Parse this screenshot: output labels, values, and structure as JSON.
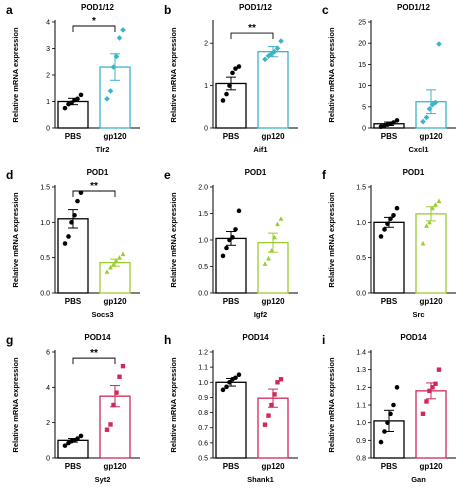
{
  "chart_data": [
    {
      "letter": "a",
      "type": "bar",
      "title": "POD1/12",
      "ylabel": "Relative mRNA expression",
      "gene": "Tlr2",
      "ylim": [
        0,
        4
      ],
      "yticks": [
        0,
        1,
        2,
        3,
        4
      ],
      "tick_decimals": 0,
      "categories": [
        "PBS",
        "gp120"
      ],
      "series": [
        {
          "color": "#000000",
          "mean": 1.0,
          "sem": 0.12,
          "points": [
            0.75,
            0.9,
            0.95,
            1.05,
            1.1,
            1.25
          ]
        },
        {
          "color": "#3cb4c8",
          "mean": 2.3,
          "sem": 0.5,
          "points": [
            1.1,
            1.4,
            2.3,
            2.7,
            3.4,
            3.7
          ]
        }
      ],
      "significance": "*"
    },
    {
      "letter": "b",
      "type": "bar",
      "title": "POD1/12",
      "ylabel": "Relative mRNA expression",
      "gene": "Aif1",
      "ylim": [
        0,
        2.5
      ],
      "yticks": [
        0,
        1,
        2
      ],
      "tick_decimals": 0,
      "categories": [
        "PBS",
        "gp120"
      ],
      "series": [
        {
          "color": "#000000",
          "mean": 1.05,
          "sem": 0.15,
          "points": [
            0.65,
            0.8,
            1.0,
            1.3,
            1.4,
            1.45
          ]
        },
        {
          "color": "#3cb4c8",
          "mean": 1.8,
          "sem": 0.12,
          "points": [
            1.62,
            1.7,
            1.75,
            1.8,
            1.88,
            2.05
          ]
        }
      ],
      "significance": "**"
    },
    {
      "letter": "c",
      "type": "bar",
      "title": "POD1/12",
      "ylabel": "Relative mRNA expression",
      "gene": "Cxcl1",
      "ylim": [
        0,
        25
      ],
      "yticks": [
        0,
        5,
        10,
        15,
        20,
        25
      ],
      "tick_decimals": 0,
      "categories": [
        "PBS",
        "gp120"
      ],
      "series": [
        {
          "color": "#000000",
          "mean": 1.0,
          "sem": 0.4,
          "points": [
            0.3,
            0.6,
            0.8,
            1.0,
            1.3,
            1.8
          ]
        },
        {
          "color": "#3cb4c8",
          "mean": 6.2,
          "sem": 2.8,
          "points": [
            1.5,
            2.5,
            4.5,
            5.5,
            6.0,
            19.8
          ]
        }
      ],
      "significance": ""
    },
    {
      "letter": "d",
      "type": "bar",
      "title": "POD1",
      "ylabel": "Relative mRNA expression",
      "gene": "Socs3",
      "ylim": [
        0,
        1.5
      ],
      "yticks": [
        0,
        0.5,
        1.0,
        1.5
      ],
      "tick_decimals": 1,
      "categories": [
        "PBS",
        "gp120"
      ],
      "series": [
        {
          "color": "#000000",
          "mean": 1.05,
          "sem": 0.13,
          "points": [
            0.7,
            0.8,
            1.0,
            1.1,
            1.3,
            1.42
          ]
        },
        {
          "color": "#9acd32",
          "mean": 0.43,
          "sem": 0.05,
          "points": [
            0.3,
            0.36,
            0.4,
            0.45,
            0.5,
            0.55
          ]
        }
      ],
      "significance": "**"
    },
    {
      "letter": "e",
      "type": "bar",
      "title": "POD1",
      "ylabel": "Relative mRNA expression",
      "gene": "Igf2",
      "ylim": [
        0,
        2.0
      ],
      "yticks": [
        0,
        0.5,
        1.0,
        1.5,
        2.0
      ],
      "tick_decimals": 1,
      "categories": [
        "PBS",
        "gp120"
      ],
      "series": [
        {
          "color": "#000000",
          "mean": 1.03,
          "sem": 0.13,
          "points": [
            0.7,
            0.85,
            1.0,
            1.05,
            1.2,
            1.55
          ]
        },
        {
          "color": "#9acd32",
          "mean": 0.95,
          "sem": 0.18,
          "points": [
            0.55,
            0.65,
            0.8,
            1.05,
            1.3,
            1.4
          ]
        }
      ],
      "significance": ""
    },
    {
      "letter": "f",
      "type": "bar",
      "title": "POD1",
      "ylabel": "Relative mRNA expression",
      "gene": "Src",
      "ylim": [
        0,
        1.5
      ],
      "yticks": [
        0,
        0.5,
        1.0,
        1.5
      ],
      "tick_decimals": 1,
      "categories": [
        "PBS",
        "gp120"
      ],
      "series": [
        {
          "color": "#000000",
          "mean": 1.0,
          "sem": 0.07,
          "points": [
            0.8,
            0.9,
            0.98,
            1.05,
            1.1,
            1.2
          ]
        },
        {
          "color": "#9acd32",
          "mean": 1.12,
          "sem": 0.1,
          "points": [
            0.7,
            0.95,
            1.0,
            1.2,
            1.25,
            1.3
          ]
        }
      ],
      "significance": ""
    },
    {
      "letter": "g",
      "type": "bar",
      "title": "POD14",
      "ylabel": "Relative mRNA expression",
      "gene": "Syt2",
      "ylim": [
        0,
        6
      ],
      "yticks": [
        0,
        2,
        4,
        6
      ],
      "tick_decimals": 0,
      "categories": [
        "PBS",
        "gp120"
      ],
      "series": [
        {
          "color": "#000000",
          "mean": 1.0,
          "sem": 0.1,
          "points": [
            0.7,
            0.85,
            0.95,
            1.0,
            1.1,
            1.25
          ]
        },
        {
          "color": "#d02858",
          "mean": 3.5,
          "sem": 0.6,
          "points": [
            1.6,
            1.9,
            3.0,
            3.7,
            4.6,
            5.2
          ]
        }
      ],
      "significance": "**"
    },
    {
      "letter": "h",
      "type": "bar",
      "title": "POD14",
      "ylabel": "Relative mRNA expression",
      "gene": "Shank1",
      "ylim": [
        0.5,
        1.2
      ],
      "yticks": [
        0.5,
        0.6,
        0.7,
        0.8,
        0.9,
        1.0,
        1.1,
        1.2
      ],
      "tick_decimals": 1,
      "categories": [
        "PBS",
        "gp120"
      ],
      "series": [
        {
          "color": "#000000",
          "mean": 1.0,
          "sem": 0.025,
          "points": [
            0.95,
            0.97,
            1.0,
            1.02,
            1.03,
            1.05
          ]
        },
        {
          "color": "#d02858",
          "mean": 0.895,
          "sem": 0.06,
          "points": [
            0.72,
            0.78,
            0.85,
            0.92,
            1.0,
            1.02
          ]
        }
      ],
      "significance": ""
    },
    {
      "letter": "i",
      "type": "bar",
      "title": "POD14",
      "ylabel": "Relative mRNA expression",
      "gene": "Gan",
      "ylim": [
        0.8,
        1.4
      ],
      "yticks": [
        0.8,
        0.9,
        1.0,
        1.1,
        1.2,
        1.3,
        1.4
      ],
      "tick_decimals": 1,
      "categories": [
        "PBS",
        "gp120"
      ],
      "series": [
        {
          "color": "#000000",
          "mean": 1.01,
          "sem": 0.06,
          "points": [
            0.89,
            0.95,
            1.0,
            1.05,
            1.1,
            1.2
          ]
        },
        {
          "color": "#d02858",
          "mean": 1.18,
          "sem": 0.045,
          "points": [
            1.05,
            1.12,
            1.18,
            1.2,
            1.22,
            1.3
          ]
        }
      ],
      "significance": ""
    }
  ]
}
